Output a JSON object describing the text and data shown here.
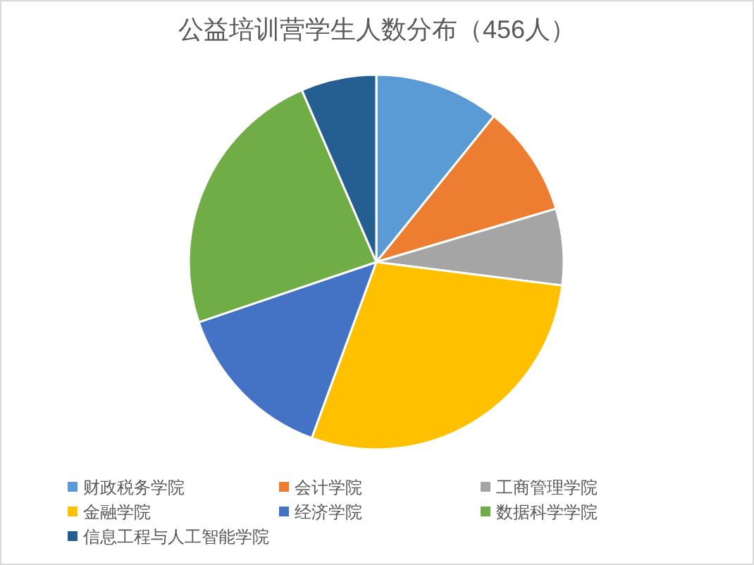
{
  "chart_data": {
    "type": "pie",
    "title": "公益培训营学生人数分布（456人）",
    "categories": [
      "财政税务学院",
      "会计学院",
      "工商管理学院",
      "金融学院",
      "经济学院",
      "数据科学学院",
      "信息工程与人工智能学院"
    ],
    "values": [
      10.8,
      9.6,
      6.6,
      28.6,
      14.2,
      23.7,
      6.5
    ],
    "colors": [
      "#5b9bd5",
      "#ed7d31",
      "#a5a5a5",
      "#ffc000",
      "#4472c4",
      "#70ad47",
      "#255e91"
    ],
    "legend": "bottom"
  }
}
